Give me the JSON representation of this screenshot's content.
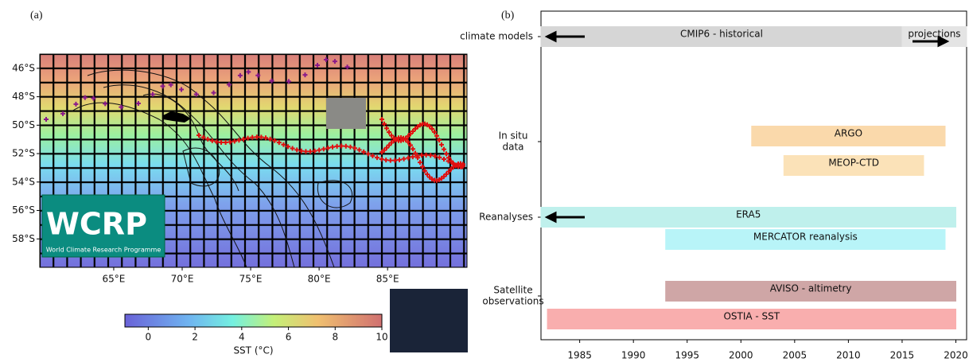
{
  "chart_data": [
    {
      "type": "map",
      "panel_label": "(a)",
      "xlim": [
        59.6,
        90.8
      ],
      "ylim": [
        -60,
        -45
      ],
      "xticks": [
        {
          "value": 65,
          "label": "65°E"
        },
        {
          "value": 70,
          "label": "70°E"
        },
        {
          "value": 75,
          "label": "75°E"
        },
        {
          "value": 80,
          "label": "80°E"
        },
        {
          "value": 85,
          "label": "85°E"
        }
      ],
      "yticks": [
        {
          "value": -46,
          "label": "46°S"
        },
        {
          "value": -48,
          "label": "48°S"
        },
        {
          "value": -50,
          "label": "50°S"
        },
        {
          "value": -52,
          "label": "52°S"
        },
        {
          "value": -54,
          "label": "54°S"
        },
        {
          "value": -56,
          "label": "56°S"
        },
        {
          "value": -58,
          "label": "58°S"
        }
      ],
      "colorbar": {
        "label": "SST (°C)",
        "clim": [
          -1,
          10
        ],
        "ticks": [
          0,
          2,
          4,
          6,
          8,
          10
        ]
      },
      "logo": {
        "title": "WCRP",
        "subtitle": "World Climate Research Programme"
      }
    },
    {
      "type": "timeline",
      "panel_label": "(b)",
      "xlim": [
        1981.4,
        2021
      ],
      "xticks": [
        1985,
        1990,
        1995,
        2000,
        2005,
        2010,
        2015,
        2020
      ],
      "groups": [
        {
          "label": [
            "climate models"
          ]
        },
        {
          "label": [
            "In situ",
            "data"
          ]
        },
        {
          "label": [
            "Reanalyses"
          ]
        },
        {
          "label": [
            "Satellite",
            "observations"
          ]
        }
      ],
      "bars": [
        {
          "name": "CMIP6 - historical",
          "start": 1981.4,
          "end": 2015,
          "color": "#d6d6d6"
        },
        {
          "name": "projections",
          "start": 2015,
          "end": 2021,
          "color": "#e4e4e4"
        },
        {
          "name": "ARGO",
          "start": 2001,
          "end": 2019,
          "color": "#fad9ab"
        },
        {
          "name": "MEOP-CTD",
          "start": 2004,
          "end": 2017,
          "color": "#fbe2b8"
        },
        {
          "name": "ERA5",
          "start": 1981.4,
          "end": 2020,
          "color": "#bff0ec"
        },
        {
          "name": "MERCATOR reanalysis",
          "start": 1993,
          "end": 2019,
          "color": "#b8f4f8"
        },
        {
          "name": "AVISO - altimetry",
          "start": 1993,
          "end": 2020,
          "color": "#cfa6a6"
        },
        {
          "name": "OSTIA - SST",
          "start": 1982,
          "end": 2020,
          "color": "#f9aeae"
        }
      ]
    }
  ]
}
